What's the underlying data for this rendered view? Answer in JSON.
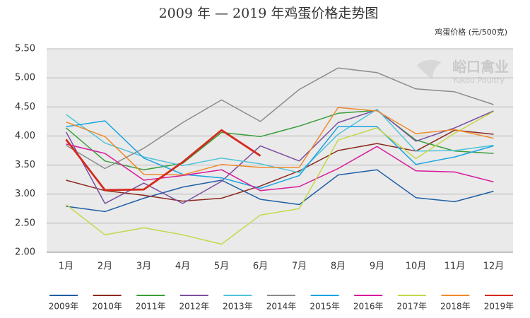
{
  "chart_data": {
    "type": "line",
    "title": "2009 年 — 2019 年鸡蛋价格走势图",
    "y_label": "鸡蛋价格 (元/500克)",
    "watermark": [
      "峪口禽业",
      "Yukou Poultry"
    ],
    "categories": [
      "1月",
      "2月",
      "3月",
      "4月",
      "5月",
      "6月",
      "7月",
      "8月",
      "9月",
      "10月",
      "11月",
      "12月"
    ],
    "ylim": [
      2.0,
      5.5
    ],
    "yticks": [
      {
        "value": 2.0,
        "label": "2.00"
      },
      {
        "value": 2.5,
        "label": "2.50"
      },
      {
        "value": 3.0,
        "label": "3.00"
      },
      {
        "value": 3.5,
        "label": "3.50"
      },
      {
        "value": 4.0,
        "label": "4.00"
      },
      {
        "value": 4.5,
        "label": "4.50"
      },
      {
        "value": 5.0,
        "label": "5.00"
      },
      {
        "value": 5.5,
        "label": "5.50"
      }
    ],
    "grid": true,
    "legend": "bottom",
    "series": [
      {
        "name": "2009年",
        "color": "#1f5fa6",
        "values": [
          2.79,
          2.7,
          2.93,
          3.12,
          3.24,
          2.91,
          2.82,
          3.33,
          3.42,
          2.94,
          2.87,
          3.05
        ]
      },
      {
        "name": "2010年",
        "color": "#8b2a1f",
        "values": [
          3.24,
          3.06,
          2.98,
          2.88,
          2.93,
          3.14,
          3.4,
          3.75,
          3.87,
          3.74,
          4.1,
          4.03
        ]
      },
      {
        "name": "2011年",
        "color": "#3a9e3a",
        "values": [
          4.14,
          3.57,
          3.42,
          3.53,
          4.06,
          3.99,
          4.17,
          4.39,
          4.44,
          3.93,
          3.74,
          3.7
        ]
      },
      {
        "name": "2012年",
        "color": "#7a4fa0",
        "values": [
          4.07,
          2.84,
          3.19,
          2.84,
          3.22,
          3.83,
          3.57,
          4.23,
          4.45,
          3.91,
          4.14,
          4.43
        ]
      },
      {
        "name": "2013年",
        "color": "#4fc3d9",
        "values": [
          4.37,
          3.88,
          3.64,
          3.49,
          3.62,
          3.52,
          3.37,
          4.03,
          4.46,
          3.74,
          3.75,
          3.84
        ]
      },
      {
        "name": "2014年",
        "color": "#8c8c8c",
        "values": [
          3.84,
          3.44,
          3.79,
          4.23,
          4.62,
          4.25,
          4.8,
          5.17,
          5.09,
          4.81,
          4.76,
          4.54
        ]
      },
      {
        "name": "2015年",
        "color": "#1aa3e0",
        "values": [
          4.16,
          4.26,
          3.62,
          3.34,
          3.28,
          3.1,
          3.32,
          4.16,
          4.16,
          3.51,
          3.64,
          3.83
        ]
      },
      {
        "name": "2016年",
        "color": "#d81b9a",
        "values": [
          3.86,
          3.7,
          3.24,
          3.32,
          3.42,
          3.06,
          3.13,
          3.44,
          3.82,
          3.4,
          3.38,
          3.21
        ]
      },
      {
        "name": "2017年",
        "color": "#c5d84a",
        "values": [
          2.82,
          2.3,
          2.42,
          2.3,
          2.14,
          2.64,
          2.75,
          3.93,
          4.14,
          3.61,
          4.05,
          4.42
        ]
      },
      {
        "name": "2018年",
        "color": "#f08a2c",
        "values": [
          4.24,
          3.99,
          3.34,
          3.33,
          3.51,
          3.46,
          3.46,
          4.49,
          4.43,
          4.04,
          4.11,
          3.96
        ]
      },
      {
        "name": "2019年",
        "color": "#d42a1e",
        "values": [
          3.94,
          3.07,
          3.08,
          3.55,
          4.1,
          3.66,
          null,
          null,
          null,
          null,
          null,
          null
        ]
      }
    ]
  }
}
